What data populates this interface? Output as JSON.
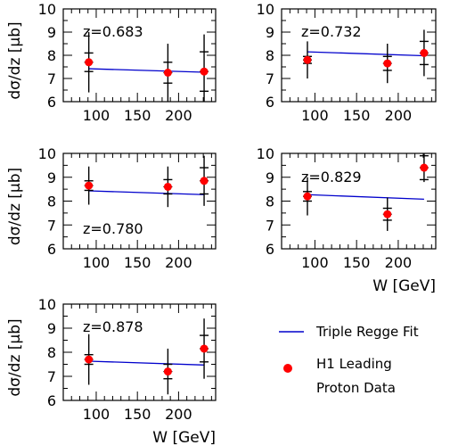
{
  "chart_data": [
    {
      "type": "scatter",
      "annotation": "z=0.683",
      "ylabel": "dσ/dz [μb]",
      "xlabel": "",
      "xlim": [
        60,
        245
      ],
      "ylim": [
        6,
        10
      ],
      "xticks": [
        100,
        150,
        200
      ],
      "yticks": [
        6,
        7,
        8,
        9,
        10
      ],
      "points": [
        {
          "x": 91,
          "y": 7.7,
          "err": 1.3,
          "syst": 0.4
        },
        {
          "x": 187,
          "y": 7.25,
          "err": 1.25,
          "syst": 0.45
        },
        {
          "x": 231,
          "y": 7.3,
          "err": 1.6,
          "syst": 0.85
        }
      ],
      "fit": [
        {
          "x": 91,
          "y": 7.42
        },
        {
          "x": 231,
          "y": 7.27
        }
      ]
    },
    {
      "type": "scatter",
      "annotation": "z=0.732",
      "ylabel": "",
      "xlabel": "",
      "xlim": [
        60,
        245
      ],
      "ylim": [
        6,
        10
      ],
      "xticks": [
        100,
        150,
        200
      ],
      "yticks": [
        6,
        7,
        8,
        9,
        10
      ],
      "points": [
        {
          "x": 91,
          "y": 7.8,
          "err": 0.8,
          "syst": 0.15
        },
        {
          "x": 187,
          "y": 7.65,
          "err": 0.85,
          "syst": 0.3
        },
        {
          "x": 231,
          "y": 8.1,
          "err": 1.0,
          "syst": 0.5
        }
      ],
      "fit": [
        {
          "x": 91,
          "y": 8.15
        },
        {
          "x": 231,
          "y": 7.98
        }
      ]
    },
    {
      "type": "scatter",
      "annotation": "z=0.780",
      "ylabel": "dσ/dz [μb]",
      "xlabel": "",
      "xlim": [
        60,
        245
      ],
      "ylim": [
        6,
        10
      ],
      "xticks": [
        100,
        150,
        200
      ],
      "yticks": [
        6,
        7,
        8,
        9,
        10
      ],
      "points": [
        {
          "x": 91,
          "y": 8.65,
          "err": 0.8,
          "syst": 0.2
        },
        {
          "x": 187,
          "y": 8.6,
          "err": 0.85,
          "syst": 0.3
        },
        {
          "x": 231,
          "y": 8.85,
          "err": 1.05,
          "syst": 0.55
        }
      ],
      "fit": [
        {
          "x": 91,
          "y": 8.43
        },
        {
          "x": 231,
          "y": 8.27
        }
      ]
    },
    {
      "type": "scatter",
      "annotation": "z=0.829",
      "ylabel": "",
      "xlabel": "W [GeV]",
      "xlim": [
        60,
        245
      ],
      "ylim": [
        6,
        10
      ],
      "xticks": [
        100,
        150,
        200
      ],
      "yticks": [
        6,
        7,
        8,
        9,
        10
      ],
      "points": [
        {
          "x": 91,
          "y": 8.2,
          "err": 0.8,
          "syst": 0.2
        },
        {
          "x": 187,
          "y": 7.45,
          "err": 0.7,
          "syst": 0.25
        },
        {
          "x": 231,
          "y": 9.4,
          "err": 0.6,
          "syst": 0.5
        }
      ],
      "fit": [
        {
          "x": 91,
          "y": 8.27
        },
        {
          "x": 231,
          "y": 8.08
        }
      ]
    },
    {
      "type": "scatter",
      "annotation": "z=0.878",
      "ylabel": "dσ/dz [μb]",
      "xlabel": "W [GeV]",
      "xlim": [
        60,
        245
      ],
      "ylim": [
        6,
        10
      ],
      "xticks": [
        100,
        150,
        200
      ],
      "yticks": [
        6,
        7,
        8,
        9,
        10
      ],
      "points": [
        {
          "x": 91,
          "y": 7.7,
          "err": 1.05,
          "syst": 0.2
        },
        {
          "x": 187,
          "y": 7.2,
          "err": 0.95,
          "syst": 0.3
        },
        {
          "x": 231,
          "y": 8.15,
          "err": 1.25,
          "syst": 0.55
        }
      ],
      "fit": [
        {
          "x": 91,
          "y": 7.63
        },
        {
          "x": 231,
          "y": 7.47
        }
      ]
    }
  ],
  "legend": {
    "fit_label": "Triple Regge Fit",
    "data_label_line1": "H1 Leading",
    "data_label_line2": "Proton Data"
  },
  "colors": {
    "fit": "#0000cc",
    "data": "#ff0000",
    "axis": "#000000"
  }
}
